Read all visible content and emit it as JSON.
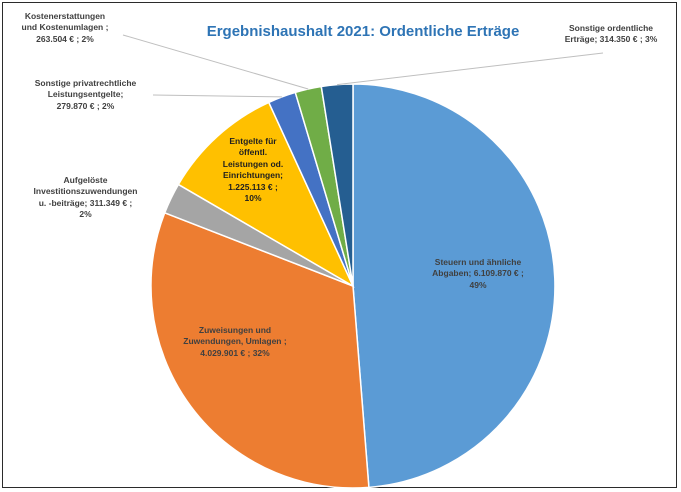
{
  "chart_data": {
    "type": "pie",
    "title": "Ergebnishaushalt 2021: Ordentliche Erträge",
    "slices": [
      {
        "name": "Steuern und ähnliche Abgaben",
        "value": 6109870,
        "percent": 49,
        "color": "#5b9bd5",
        "label_lines": [
          "Steuern und ähnliche",
          "Abgaben;  6.109.870 € ;",
          "49%"
        ]
      },
      {
        "name": "Zuweisungen und Zuwendungen, Umlagen",
        "value": 4029901,
        "percent": 32,
        "color": "#ed7d31",
        "label_lines": [
          "Zuweisungen und",
          "Zuwendungen, Umlagen ;",
          "4.029.901  € ; 32%"
        ]
      },
      {
        "name": "Aufgelöste Investitionszuwendungen u. -beiträge",
        "value": 311349,
        "percent": 2,
        "color": "#a5a5a5",
        "label_lines": [
          "Aufgelöste",
          "Investitionszuwendungen",
          "u. -beiträge;  311.349 € ;",
          "2%"
        ]
      },
      {
        "name": "Entgelte für öffentl. Leistungen od. Einrichtungen",
        "value": 1225113,
        "percent": 10,
        "color": "#ffc000",
        "label_lines": [
          "Entgelte für",
          "öffentl.",
          "Leistungen od.",
          "Einrichtungen;",
          "1.225.113  € ;",
          "10%"
        ]
      },
      {
        "name": "Sonstige privatrechtliche Leistungsentgelte",
        "value": 279870,
        "percent": 2,
        "color": "#4472c4",
        "label_lines": [
          "Sonstige privatrechtliche",
          "Leistungsentgelte;",
          "279.870  € ; 2%"
        ]
      },
      {
        "name": "Kostenerstattungen und Kostenumlagen",
        "value": 263504,
        "percent": 2,
        "color": "#70ad47",
        "label_lines": [
          "Kostenerstattungen",
          "und Kostenumlagen ;",
          "263.504  € ; 2%"
        ]
      },
      {
        "name": "Sonstige ordentliche Erträge",
        "value": 314350,
        "percent": 3,
        "color": "#255e91",
        "label_lines": [
          "Sonstige ordentliche",
          "Erträge;  314.350 € ; 3%"
        ]
      }
    ]
  }
}
